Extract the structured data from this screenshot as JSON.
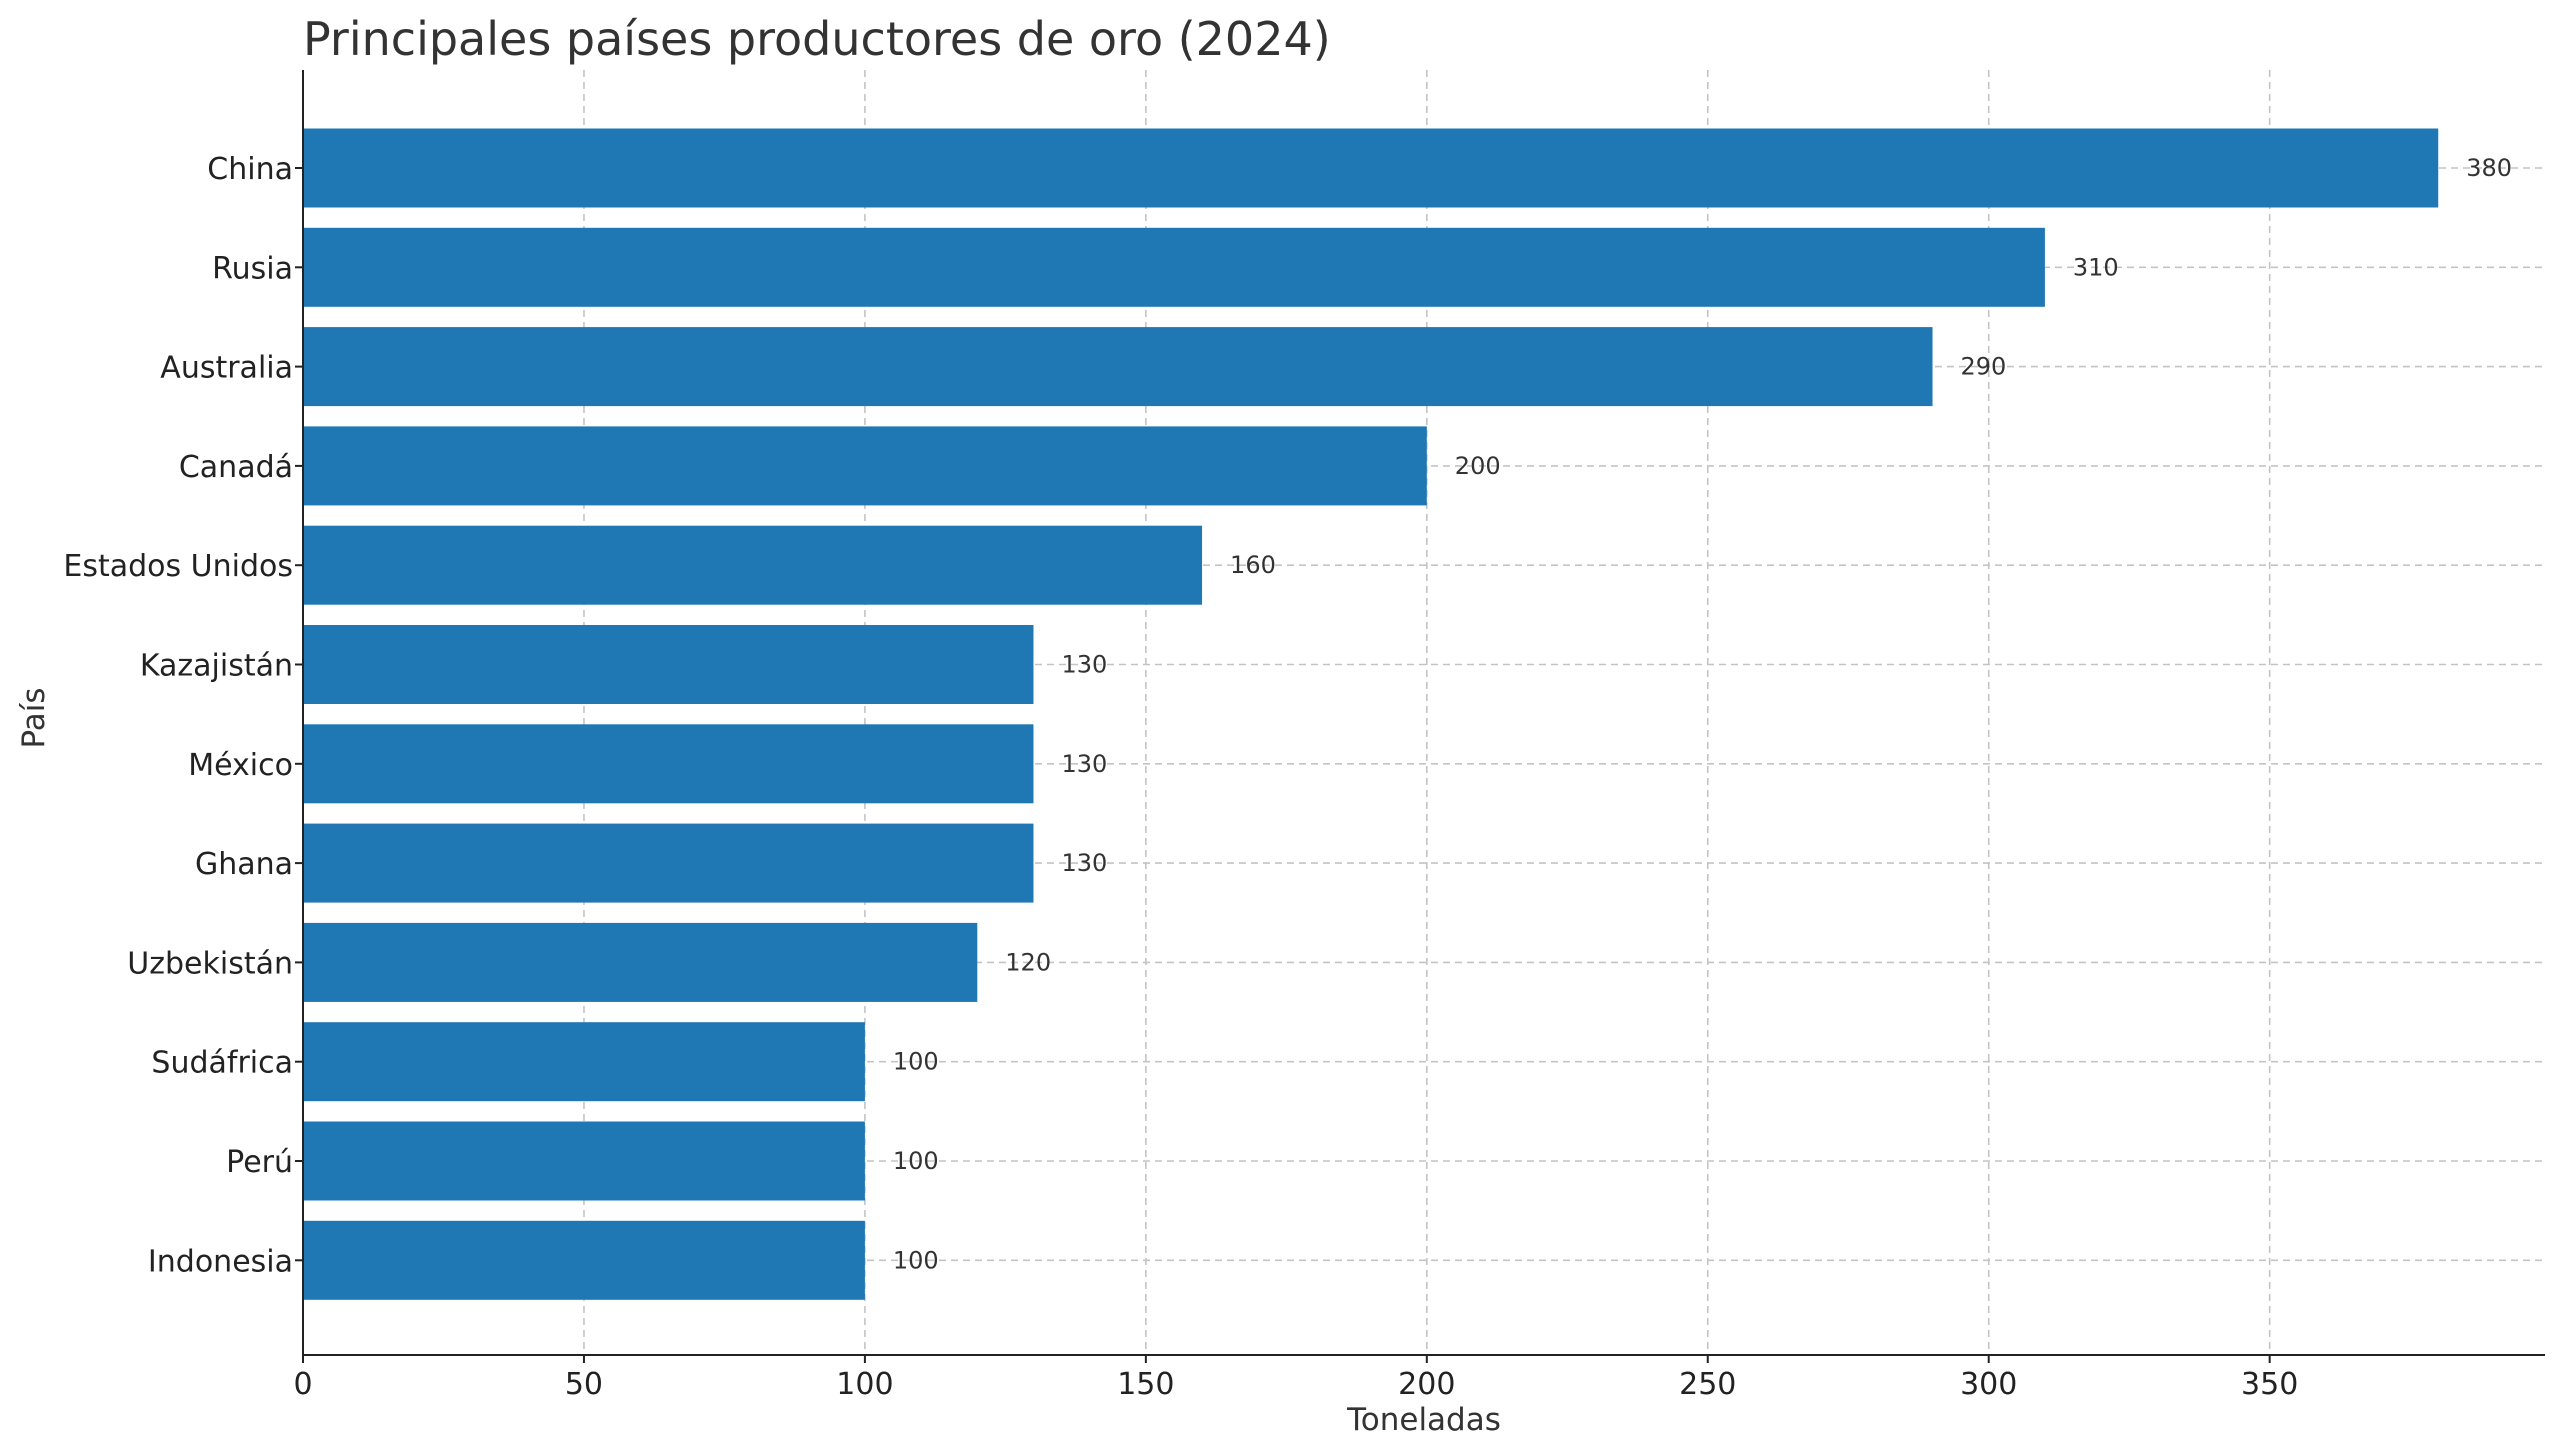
{
  "chart_data": {
    "type": "bar",
    "orientation": "horizontal",
    "title": "Principales países productores de oro (2024)",
    "xlabel": "Toneladas",
    "ylabel": "País",
    "categories": [
      "China",
      "Rusia",
      "Australia",
      "Canadá",
      "Estados Unidos",
      "Kazajistán",
      "México",
      "Ghana",
      "Uzbekistán",
      "Sudáfrica",
      "Perú",
      "Indonesia"
    ],
    "values": [
      380,
      310,
      290,
      200,
      160,
      130,
      130,
      130,
      120,
      100,
      100,
      100
    ],
    "data_labels": [
      "380",
      "310",
      "290",
      "200",
      "160",
      "130",
      "130",
      "130",
      "120",
      "100",
      "100",
      "100"
    ],
    "xlim": [
      0,
      399
    ],
    "xticks": [
      0,
      50,
      100,
      150,
      200,
      250,
      300,
      350
    ],
    "grid": true,
    "legend": "none",
    "bar_color": "#1f77b4"
  }
}
